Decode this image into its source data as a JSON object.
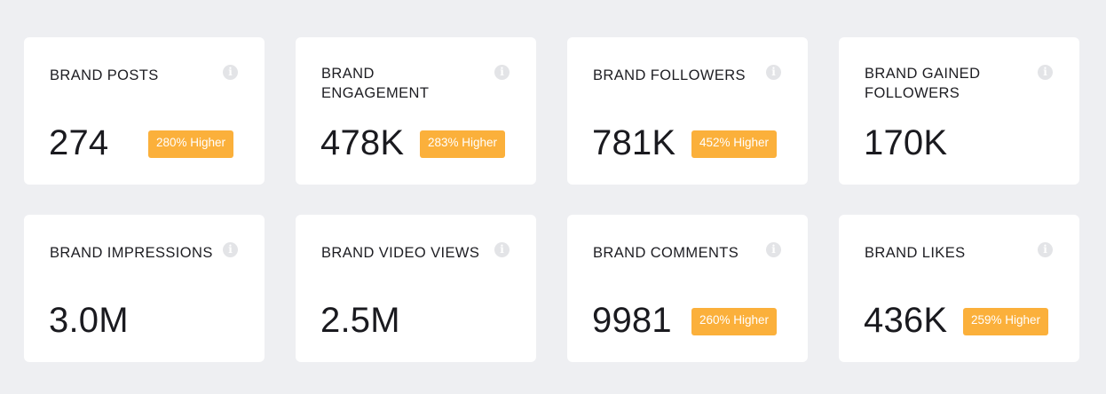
{
  "colors": {
    "background": "#eeeff2",
    "card": "#ffffff",
    "badge": "#fbb03b",
    "text": "#1d1d22",
    "info_icon": "#e3e4e7"
  },
  "icons": {
    "info": "info-icon"
  },
  "cards": [
    {
      "title": "BRAND POSTS",
      "value": "274",
      "badge": "280% Higher"
    },
    {
      "title": "BRAND ENGAGEMENT",
      "value": "478K",
      "badge": "283% Higher"
    },
    {
      "title": "BRAND FOLLOWERS",
      "value": "781K",
      "badge": "452% Higher"
    },
    {
      "title": "BRAND GAINED FOLLOWERS",
      "value": "170K",
      "badge": ""
    },
    {
      "title": "BRAND IMPRESSIONS",
      "value": "3.0M",
      "badge": ""
    },
    {
      "title": "BRAND VIDEO VIEWS",
      "value": "2.5M",
      "badge": ""
    },
    {
      "title": "BRAND COMMENTS",
      "value": "9981",
      "badge": "260% Higher"
    },
    {
      "title": "BRAND LIKES",
      "value": "436K",
      "badge": "259% Higher"
    }
  ]
}
